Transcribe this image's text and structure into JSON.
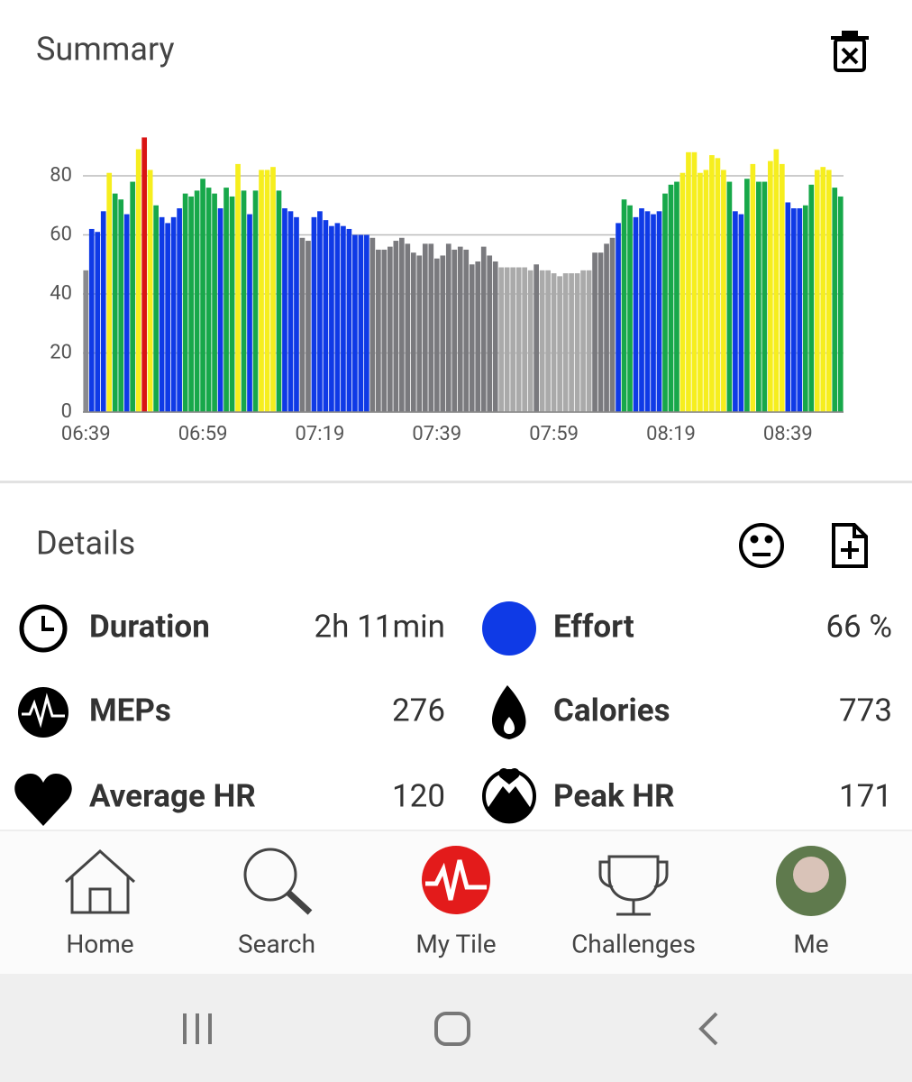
{
  "summary": {
    "title": "Summary"
  },
  "chart_data": {
    "type": "bar",
    "categories": [
      "06:39",
      null,
      null,
      null,
      null,
      null,
      null,
      null,
      null,
      null,
      null,
      null,
      null,
      null,
      null,
      null,
      null,
      null,
      null,
      null,
      "06:59",
      null,
      null,
      null,
      null,
      null,
      null,
      null,
      null,
      null,
      null,
      null,
      null,
      null,
      null,
      null,
      null,
      null,
      null,
      null,
      "07:19",
      null,
      null,
      null,
      null,
      null,
      null,
      null,
      null,
      null,
      null,
      null,
      null,
      null,
      null,
      null,
      null,
      null,
      null,
      null,
      "07:39",
      null,
      null,
      null,
      null,
      null,
      null,
      null,
      null,
      null,
      null,
      null,
      null,
      null,
      null,
      null,
      null,
      null,
      null,
      null,
      "07:59",
      null,
      null,
      null,
      null,
      null,
      null,
      null,
      null,
      null,
      null,
      null,
      null,
      null,
      null,
      null,
      null,
      null,
      null,
      null,
      "08:19",
      null,
      null,
      null,
      null,
      null,
      null,
      null,
      null,
      null,
      null,
      null,
      null,
      null,
      null,
      null,
      null,
      null,
      null,
      null,
      "08:39",
      null,
      null,
      null,
      null,
      null,
      null,
      null,
      null,
      null
    ],
    "values": [
      48,
      62,
      61,
      68,
      81,
      74,
      72,
      67,
      78,
      89,
      93,
      82,
      70,
      66,
      64,
      66,
      69,
      74,
      73,
      75,
      79,
      76,
      74,
      69,
      76,
      73,
      84,
      75,
      67,
      75,
      82,
      82,
      83,
      75,
      69,
      68,
      66,
      59,
      58,
      66,
      68,
      65,
      63,
      64,
      63,
      62,
      60,
      60,
      60,
      59,
      55,
      55,
      56,
      58,
      59,
      57,
      54,
      53,
      57,
      57,
      52,
      53,
      57,
      55,
      56,
      55,
      50,
      51,
      56,
      53,
      51,
      49,
      49,
      49,
      49,
      49,
      48,
      50,
      48,
      48,
      47,
      46,
      47,
      47,
      47,
      48,
      48,
      54,
      54,
      57,
      59,
      64,
      72,
      70,
      66,
      69,
      68,
      67,
      68,
      74,
      77,
      78,
      81,
      88,
      88,
      81,
      82,
      87,
      86,
      82,
      78,
      68,
      67,
      79,
      84,
      78,
      78,
      85,
      89,
      84,
      71,
      69,
      69,
      70,
      77,
      82,
      83,
      82,
      76,
      73
    ],
    "colors": [
      "#8a8a8e",
      "#0f3ae6",
      "#0f3ae6",
      "#0f3ae6",
      "#f6ee1e",
      "#17a84a",
      "#17a84a",
      "#0f3ae6",
      "#17a84a",
      "#f6ee1e",
      "#d91414",
      "#f6ee1e",
      "#17a84a",
      "#0f3ae6",
      "#0f3ae6",
      "#0f3ae6",
      "#0f3ae6",
      "#17a84a",
      "#17a84a",
      "#17a84a",
      "#17a84a",
      "#17a84a",
      "#17a84a",
      "#0f3ae6",
      "#17a84a",
      "#17a84a",
      "#f6ee1e",
      "#17a84a",
      "#0f3ae6",
      "#17a84a",
      "#f6ee1e",
      "#f6ee1e",
      "#f6ee1e",
      "#17a84a",
      "#0f3ae6",
      "#0f3ae6",
      "#0f3ae6",
      "#7a7a7e",
      "#7a7a7e",
      "#0f3ae6",
      "#0f3ae6",
      "#0f3ae6",
      "#0f3ae6",
      "#0f3ae6",
      "#0f3ae6",
      "#0f3ae6",
      "#0f3ae6",
      "#0f3ae6",
      "#0f3ae6",
      "#7a7a7e",
      "#7a7a7e",
      "#7a7a7e",
      "#7a7a7e",
      "#7a7a7e",
      "#7a7a7e",
      "#7a7a7e",
      "#7a7a7e",
      "#7a7a7e",
      "#7a7a7e",
      "#7a7a7e",
      "#7a7a7e",
      "#7a7a7e",
      "#7a7a7e",
      "#7a7a7e",
      "#7a7a7e",
      "#7a7a7e",
      "#7a7a7e",
      "#7a7a7e",
      "#7a7a7e",
      "#7a7a7e",
      "#7a7a7e",
      "#aaaaaa",
      "#aaaaaa",
      "#aaaaaa",
      "#aaaaaa",
      "#aaaaaa",
      "#aaaaaa",
      "#7a7a7e",
      "#aaaaaa",
      "#aaaaaa",
      "#aaaaaa",
      "#aaaaaa",
      "#aaaaaa",
      "#aaaaaa",
      "#aaaaaa",
      "#aaaaaa",
      "#aaaaaa",
      "#7a7a7e",
      "#7a7a7e",
      "#7a7a7e",
      "#7a7a7e",
      "#0f3ae6",
      "#17a84a",
      "#17a84a",
      "#0f3ae6",
      "#0f3ae6",
      "#0f3ae6",
      "#0f3ae6",
      "#0f3ae6",
      "#17a84a",
      "#17a84a",
      "#17a84a",
      "#f6ee1e",
      "#f6ee1e",
      "#f6ee1e",
      "#f6ee1e",
      "#f6ee1e",
      "#f6ee1e",
      "#f6ee1e",
      "#f6ee1e",
      "#17a84a",
      "#0f3ae6",
      "#0f3ae6",
      "#17a84a",
      "#f6ee1e",
      "#17a84a",
      "#17a84a",
      "#f6ee1e",
      "#f6ee1e",
      "#f6ee1e",
      "#0f3ae6",
      "#0f3ae6",
      "#0f3ae6",
      "#17a84a",
      "#17a84a",
      "#f6ee1e",
      "#f6ee1e",
      "#f6ee1e",
      "#17a84a",
      "#17a84a"
    ],
    "ylim": [
      0,
      100
    ],
    "yticks": [
      0,
      20,
      40,
      60,
      80
    ],
    "grid": true
  },
  "details": {
    "title": "Details",
    "stats": [
      {
        "label": "Duration",
        "value": "2h 11min"
      },
      {
        "label": "Effort",
        "value": "66 %"
      },
      {
        "label": "MEPs",
        "value": "276"
      },
      {
        "label": "Calories",
        "value": "773"
      },
      {
        "label": "Average HR",
        "value": "120"
      },
      {
        "label": "Peak HR",
        "value": "171"
      }
    ]
  },
  "nav": [
    "Home",
    "Search",
    "My Tile",
    "Challenges",
    "Me"
  ]
}
